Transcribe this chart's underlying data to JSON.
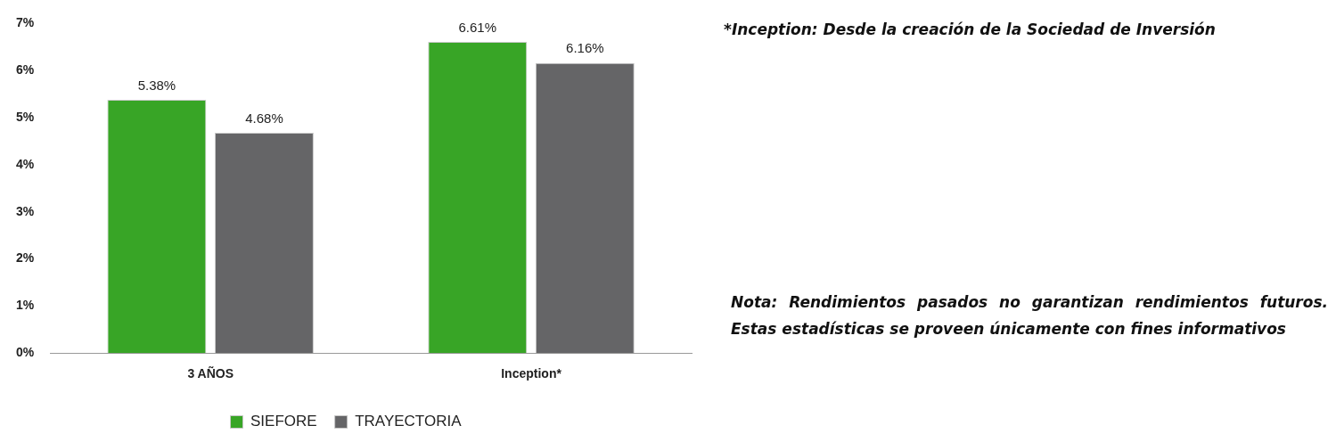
{
  "chart_data": {
    "type": "bar",
    "categories": [
      "3 AÑOS",
      "Inception*"
    ],
    "series": [
      {
        "name": "SIEFORE",
        "color": "#38a526",
        "values": [
          5.38,
          6.61
        ],
        "value_labels": [
          "5.38%",
          "6.61%"
        ]
      },
      {
        "name": "TRAYECTORIA",
        "color": "#656567",
        "values": [
          4.68,
          6.16
        ],
        "value_labels": [
          "4.68%",
          "6.16%"
        ]
      }
    ],
    "ylim": [
      0,
      7
    ],
    "yticks": [
      {
        "value": 0,
        "label": "0%"
      },
      {
        "value": 1,
        "label": "1%"
      },
      {
        "value": 2,
        "label": "2%"
      },
      {
        "value": 3,
        "label": "3%"
      },
      {
        "value": 4,
        "label": "4%"
      },
      {
        "value": 5,
        "label": "5%"
      },
      {
        "value": 6,
        "label": "6%"
      },
      {
        "value": 7,
        "label": "7%"
      }
    ],
    "grid": false,
    "legend": "bottom",
    "annotations": [
      "*Inception: Desde la creación de la Sociedad de Inversión",
      "Nota: Rendimientos pasados no garantizan rendimientos futuros. Estas estadísticas se proveen únicamente con fines informativos"
    ]
  }
}
